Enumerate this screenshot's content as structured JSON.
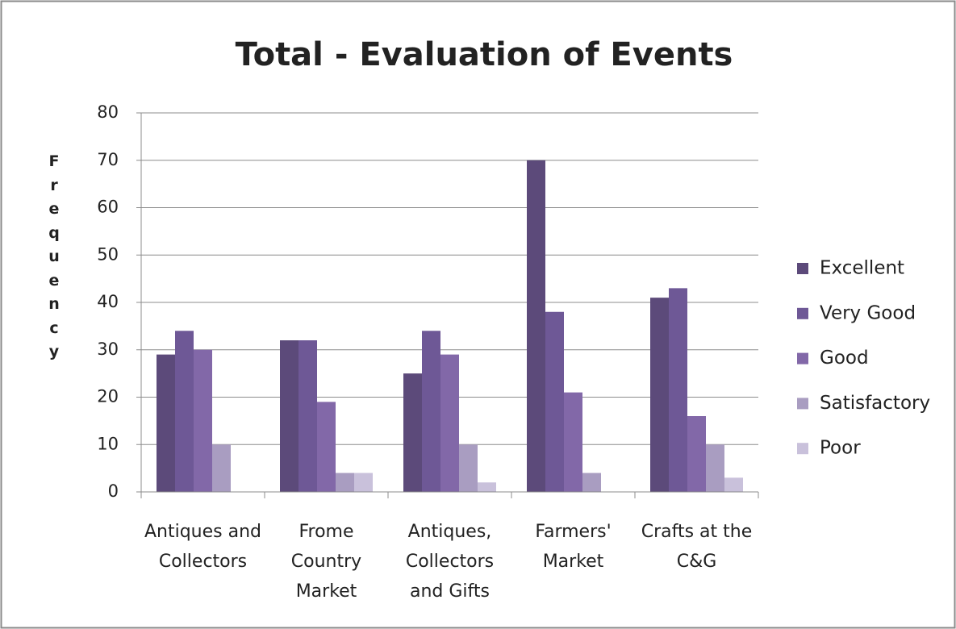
{
  "chart_data": {
    "type": "bar",
    "title": "Total - Evaluation of Events",
    "y_label": "Frequency",
    "categories": [
      "Antiques and Collectors",
      "Frome Country Market",
      "Antiques, Collectors and Gifts",
      "Farmers' Market",
      "Crafts at the C&G"
    ],
    "series": [
      {
        "name": "Excellent",
        "color": "#5c4a7a",
        "values": [
          29,
          32,
          25,
          70,
          41
        ]
      },
      {
        "name": "Very Good",
        "color": "#6e5896",
        "values": [
          34,
          32,
          34,
          38,
          43
        ]
      },
      {
        "name": "Good",
        "color": "#8268a8",
        "values": [
          30,
          19,
          29,
          21,
          16
        ]
      },
      {
        "name": "Satisfactory",
        "color": "#a99dc1",
        "values": [
          10,
          4,
          10,
          4,
          10
        ]
      },
      {
        "name": "Poor",
        "color": "#c9c1db",
        "values": [
          0,
          4,
          2,
          0,
          3
        ]
      }
    ],
    "ylim": [
      0,
      80
    ],
    "yticks": [
      0,
      10,
      20,
      30,
      40,
      50,
      60,
      70,
      80
    ],
    "grid": true,
    "legend": "right"
  }
}
